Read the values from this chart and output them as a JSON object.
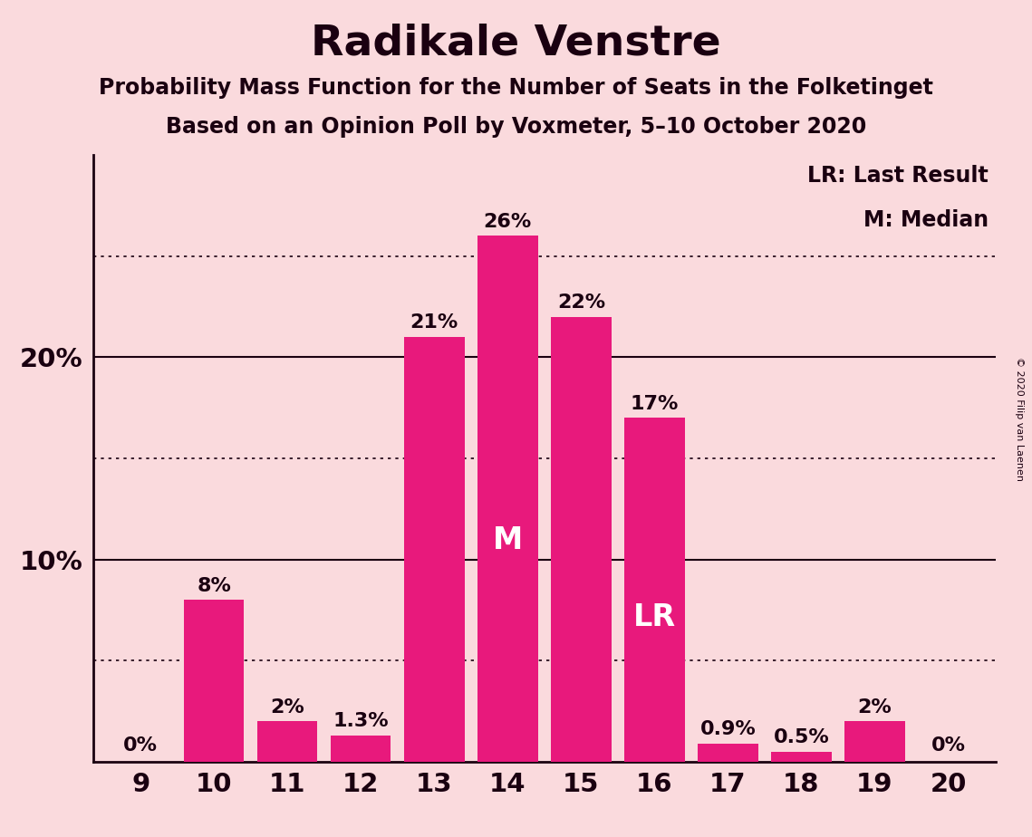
{
  "title": "Radikale Venstre",
  "subtitle1": "Probability Mass Function for the Number of Seats in the Folketinget",
  "subtitle2": "Based on an Opinion Poll by Voxmeter, 5–10 October 2020",
  "copyright": "© 2020 Filip van Laenen",
  "categories": [
    9,
    10,
    11,
    12,
    13,
    14,
    15,
    16,
    17,
    18,
    19,
    20
  ],
  "values": [
    0.0,
    8.0,
    2.0,
    1.3,
    21.0,
    26.0,
    22.0,
    17.0,
    0.9,
    0.5,
    2.0,
    0.0
  ],
  "labels": [
    "0%",
    "8%",
    "2%",
    "1.3%",
    "21%",
    "26%",
    "22%",
    "17%",
    "0.9%",
    "0.5%",
    "2%",
    "0%"
  ],
  "bar_color": "#E8197C",
  "background_color": "#FADADD",
  "text_color": "#1A0010",
  "median_seat": 14,
  "lr_seat": 16,
  "legend_lr": "LR: Last Result",
  "legend_m": "M: Median",
  "ylim": [
    0,
    30
  ],
  "yticks": [
    10,
    20
  ],
  "ytick_labels": [
    "10%",
    "20%"
  ],
  "dotted_lines": [
    5,
    15,
    25
  ],
  "solid_lines": [
    10,
    20
  ],
  "title_fontsize": 34,
  "subtitle_fontsize": 17,
  "label_fontsize": 16,
  "inner_label_fontsize": 24,
  "ytick_fontsize": 21,
  "xtick_fontsize": 21,
  "legend_fontsize": 17
}
